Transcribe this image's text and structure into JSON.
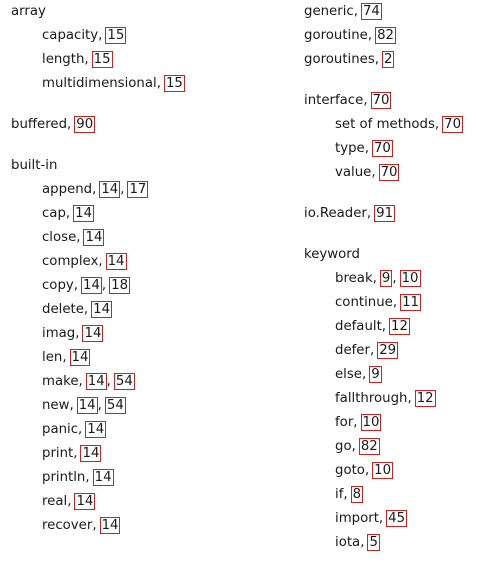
{
  "left_column": [
    {
      "term": "array",
      "pages": [],
      "subs": [
        {
          "term": "capacity",
          "pages": [
            "15"
          ]
        },
        {
          "term": "length",
          "pages": [
            "15"
          ]
        },
        {
          "term": "multidimensional",
          "pages": [
            "15"
          ]
        }
      ]
    },
    {
      "term": "buffered",
      "pages": [
        "90"
      ],
      "subs": []
    },
    {
      "term": "built-in",
      "pages": [],
      "subs": [
        {
          "term": "append",
          "pages": [
            "14",
            "17"
          ]
        },
        {
          "term": "cap",
          "pages": [
            "14"
          ]
        },
        {
          "term": "close",
          "pages": [
            "14"
          ]
        },
        {
          "term": "complex",
          "pages": [
            "14"
          ]
        },
        {
          "term": "copy",
          "pages": [
            "14",
            "18"
          ]
        },
        {
          "term": "delete",
          "pages": [
            "14"
          ]
        },
        {
          "term": "imag",
          "pages": [
            "14"
          ]
        },
        {
          "term": "len",
          "pages": [
            "14"
          ]
        },
        {
          "term": "make",
          "pages": [
            "14",
            "54"
          ]
        },
        {
          "term": "new",
          "pages": [
            "14",
            "54"
          ]
        },
        {
          "term": "panic",
          "pages": [
            "14"
          ]
        },
        {
          "term": "print",
          "pages": [
            "14"
          ]
        },
        {
          "term": "println",
          "pages": [
            "14"
          ]
        },
        {
          "term": "real",
          "pages": [
            "14"
          ]
        },
        {
          "term": "recover",
          "pages": [
            "14"
          ]
        }
      ]
    }
  ],
  "right_column": [
    {
      "term": "generic",
      "pages": [
        "74"
      ],
      "subs": []
    },
    {
      "term": "goroutine",
      "pages": [
        "82"
      ],
      "subs": []
    },
    {
      "term": "goroutines",
      "pages": [
        "2"
      ],
      "subs": []
    },
    {
      "term": "interface",
      "pages": [
        "70"
      ],
      "subs": [
        {
          "term": "set of methods",
          "pages": [
            "70"
          ]
        },
        {
          "term": "type",
          "pages": [
            "70"
          ]
        },
        {
          "term": "value",
          "pages": [
            "70"
          ]
        }
      ]
    },
    {
      "term": "io.Reader",
      "pages": [
        "91"
      ],
      "subs": []
    },
    {
      "term": "keyword",
      "pages": [],
      "subs": [
        {
          "term": "break",
          "pages": [
            "9",
            "10"
          ]
        },
        {
          "term": "continue",
          "pages": [
            "11"
          ]
        },
        {
          "term": "default",
          "pages": [
            "12"
          ]
        },
        {
          "term": "defer",
          "pages": [
            "29"
          ]
        },
        {
          "term": "else",
          "pages": [
            "9"
          ]
        },
        {
          "term": "fallthrough",
          "pages": [
            "12"
          ]
        },
        {
          "term": "for",
          "pages": [
            "10"
          ]
        },
        {
          "term": "go",
          "pages": [
            "82"
          ]
        },
        {
          "term": "goto",
          "pages": [
            "10"
          ]
        },
        {
          "term": "if",
          "pages": [
            "8"
          ]
        },
        {
          "term": "import",
          "pages": [
            "45"
          ]
        },
        {
          "term": "iota",
          "pages": [
            "5"
          ]
        }
      ]
    }
  ],
  "link_box_color": "#d12020"
}
